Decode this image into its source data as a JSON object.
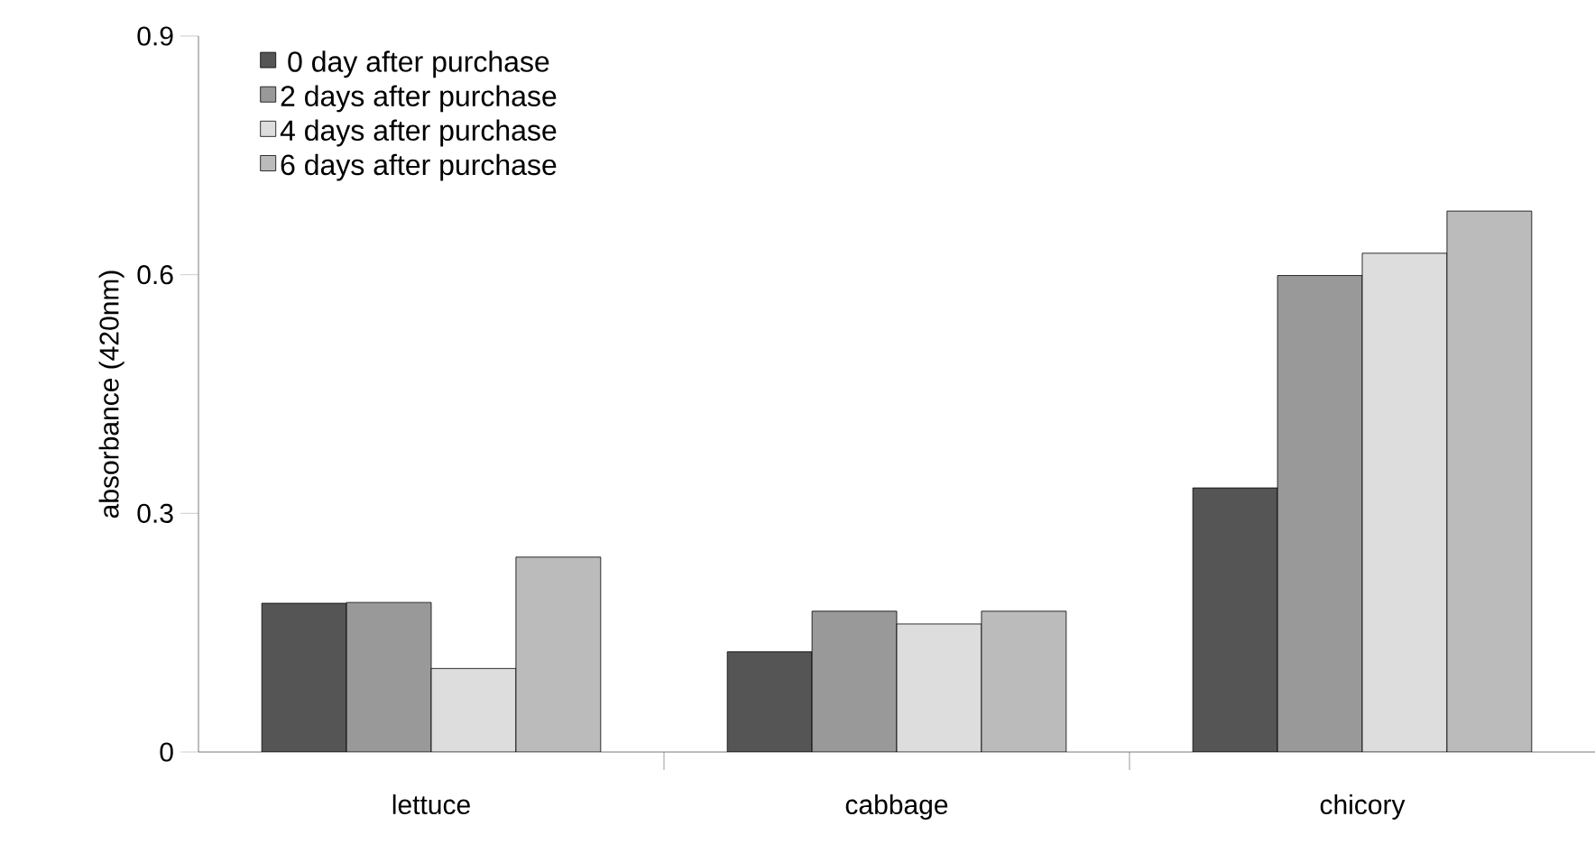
{
  "chart_data": {
    "type": "bar",
    "ylabel": "absorbance (420nm)",
    "categories": [
      "lettuce",
      "cabbage",
      "chicory"
    ],
    "series": [
      {
        "name": "0 day after purchase",
        "color": "#555555",
        "values": [
          0.187,
          0.126,
          0.332
        ]
      },
      {
        "name": "2 days after purchase",
        "color": "#999999",
        "values": [
          0.188,
          0.177,
          0.599
        ]
      },
      {
        "name": "4 days after purchase",
        "color": "#dddddd",
        "values": [
          0.105,
          0.161,
          0.627
        ]
      },
      {
        "name": "6 days after purchase",
        "color": "#bbbbbb",
        "values": [
          0.245,
          0.177,
          0.68
        ]
      }
    ],
    "ylim": [
      0,
      0.9
    ],
    "yticks": [
      0,
      0.3,
      0.6,
      0.9
    ],
    "grid": false,
    "legend": "top left"
  }
}
